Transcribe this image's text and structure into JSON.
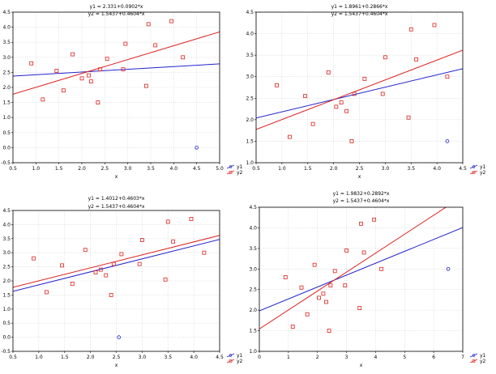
{
  "chart_data": [
    {
      "type": "scatter",
      "equations": [
        "y1 = 2.331+0.0902*x",
        "y2 = 1.5437+0.4604*x"
      ],
      "xlabel": "x",
      "ylabel": "",
      "xlim": [
        0.5,
        5.0
      ],
      "ylim": [
        -0.5,
        4.5
      ],
      "xticks": [
        "0.5",
        "1.0",
        "1.5",
        "2.0",
        "2.5",
        "3.0",
        "3.5",
        "4.0",
        "4.5",
        "5.0"
      ],
      "yticks": [
        "-0.5",
        "0.0",
        "0.5",
        "1.0",
        "1.5",
        "2.0",
        "2.5",
        "3.0",
        "3.5",
        "4.0",
        "4.5"
      ],
      "grid": true,
      "legend_position": "bottom-right",
      "series": [
        {
          "name": "y1",
          "kind": "points",
          "color": "#2222cc",
          "points": [
            [
              4.5,
              0.0
            ]
          ]
        },
        {
          "name": "y2",
          "kind": "points",
          "color": "#dd2222",
          "points": [
            [
              0.9,
              2.8
            ],
            [
              1.15,
              1.6
            ],
            [
              1.45,
              2.55
            ],
            [
              1.6,
              1.9
            ],
            [
              1.8,
              3.1
            ],
            [
              2.0,
              2.3
            ],
            [
              2.15,
              2.4
            ],
            [
              2.2,
              2.2
            ],
            [
              2.35,
              1.5
            ],
            [
              2.4,
              2.6
            ],
            [
              2.55,
              2.95
            ],
            [
              2.9,
              2.6
            ],
            [
              2.95,
              3.45
            ],
            [
              3.4,
              2.05
            ],
            [
              3.45,
              4.1
            ],
            [
              3.6,
              3.4
            ],
            [
              3.95,
              4.2
            ],
            [
              4.2,
              3.0
            ]
          ]
        },
        {
          "name": "y1",
          "kind": "line",
          "color": "#2222cc",
          "intercept": 2.331,
          "slope": 0.0902
        },
        {
          "name": "y2",
          "kind": "line",
          "color": "#dd2222",
          "intercept": 1.5437,
          "slope": 0.4604
        }
      ]
    },
    {
      "type": "scatter",
      "equations": [
        "y1 = 1.8961+0.2866*x",
        "y2 = 1.5437+0.4604*x"
      ],
      "xlabel": "x",
      "ylabel": "",
      "xlim": [
        0.5,
        4.5
      ],
      "ylim": [
        1.0,
        4.5
      ],
      "xticks": [
        "0.5",
        "1.0",
        "1.5",
        "2.0",
        "2.5",
        "3.0",
        "3.5",
        "4.0",
        "4.5"
      ],
      "yticks": [
        "1.0",
        "1.5",
        "2.0",
        "2.5",
        "3.0",
        "3.5",
        "4.0",
        "4.5"
      ],
      "grid": true,
      "legend_position": "bottom-right",
      "series": [
        {
          "name": "y1",
          "kind": "points",
          "color": "#2222cc",
          "points": [
            [
              4.2,
              1.5
            ]
          ]
        },
        {
          "name": "y2",
          "kind": "points",
          "color": "#dd2222",
          "points": [
            [
              0.9,
              2.8
            ],
            [
              1.15,
              1.6
            ],
            [
              1.45,
              2.55
            ],
            [
              1.6,
              1.9
            ],
            [
              1.9,
              3.1
            ],
            [
              2.05,
              2.3
            ],
            [
              2.15,
              2.4
            ],
            [
              2.25,
              2.2
            ],
            [
              2.35,
              1.5
            ],
            [
              2.4,
              2.6
            ],
            [
              2.6,
              2.95
            ],
            [
              2.95,
              2.6
            ],
            [
              3.0,
              3.45
            ],
            [
              3.45,
              2.05
            ],
            [
              3.5,
              4.1
            ],
            [
              3.6,
              3.4
            ],
            [
              3.95,
              4.2
            ],
            [
              4.2,
              3.0
            ]
          ]
        },
        {
          "name": "y1",
          "kind": "line",
          "color": "#2222cc",
          "intercept": 1.8961,
          "slope": 0.2866
        },
        {
          "name": "y2",
          "kind": "line",
          "color": "#dd2222",
          "intercept": 1.5437,
          "slope": 0.4604
        }
      ]
    },
    {
      "type": "scatter",
      "equations": [
        "y1 = 1.4012+0.4603*x",
        "y2 = 1.5437+0.4604*x"
      ],
      "xlabel": "x",
      "ylabel": "",
      "xlim": [
        0.5,
        4.5
      ],
      "ylim": [
        -0.5,
        4.5
      ],
      "xticks": [
        "0.5",
        "1.0",
        "1.5",
        "2.0",
        "2.5",
        "3.0",
        "3.5",
        "4.0",
        "4.5"
      ],
      "yticks": [
        "-0.5",
        "0.0",
        "0.5",
        "1.0",
        "1.5",
        "2.0",
        "2.5",
        "3.0",
        "3.5",
        "4.0",
        "4.5"
      ],
      "grid": true,
      "legend_position": "bottom-right",
      "series": [
        {
          "name": "y1",
          "kind": "points",
          "color": "#2222cc",
          "points": [
            [
              2.55,
              0.0
            ]
          ]
        },
        {
          "name": "y2",
          "kind": "points",
          "color": "#dd2222",
          "points": [
            [
              0.9,
              2.8
            ],
            [
              1.15,
              1.6
            ],
            [
              1.45,
              2.55
            ],
            [
              1.65,
              1.9
            ],
            [
              1.9,
              3.1
            ],
            [
              2.1,
              2.3
            ],
            [
              2.2,
              2.4
            ],
            [
              2.3,
              2.2
            ],
            [
              2.4,
              1.5
            ],
            [
              2.45,
              2.6
            ],
            [
              2.6,
              2.95
            ],
            [
              2.95,
              2.6
            ],
            [
              3.0,
              3.45
            ],
            [
              3.45,
              2.05
            ],
            [
              3.5,
              4.1
            ],
            [
              3.6,
              3.4
            ],
            [
              3.95,
              4.2
            ],
            [
              4.2,
              3.0
            ]
          ]
        },
        {
          "name": "y1",
          "kind": "line",
          "color": "#2222cc",
          "intercept": 1.4012,
          "slope": 0.4603
        },
        {
          "name": "y2",
          "kind": "line",
          "color": "#dd2222",
          "intercept": 1.5437,
          "slope": 0.4604
        }
      ]
    },
    {
      "type": "scatter",
      "equations": [
        "y1 = 1.9832+0.2892*x",
        "y2 = 1.5437+0.4604*x"
      ],
      "xlabel": "x",
      "ylabel": "",
      "xlim": [
        0,
        7
      ],
      "ylim": [
        1.0,
        4.5
      ],
      "xticks": [
        "0",
        "1",
        "2",
        "3",
        "4",
        "5",
        "6",
        "7"
      ],
      "yticks": [
        "1.0",
        "1.5",
        "2.0",
        "2.5",
        "3.0",
        "3.5",
        "4.0",
        "4.5"
      ],
      "grid": true,
      "legend_position": "bottom-right",
      "series": [
        {
          "name": "y1",
          "kind": "points",
          "color": "#2222cc",
          "points": [
            [
              6.5,
              3.0
            ]
          ]
        },
        {
          "name": "y2",
          "kind": "points",
          "color": "#dd2222",
          "points": [
            [
              0.9,
              2.8
            ],
            [
              1.15,
              1.6
            ],
            [
              1.45,
              2.55
            ],
            [
              1.65,
              1.9
            ],
            [
              1.9,
              3.1
            ],
            [
              2.05,
              2.3
            ],
            [
              2.2,
              2.4
            ],
            [
              2.3,
              2.2
            ],
            [
              2.4,
              1.5
            ],
            [
              2.45,
              2.6
            ],
            [
              2.6,
              2.95
            ],
            [
              2.95,
              2.6
            ],
            [
              3.0,
              3.45
            ],
            [
              3.45,
              2.05
            ],
            [
              3.5,
              4.1
            ],
            [
              3.6,
              3.4
            ],
            [
              3.95,
              4.2
            ],
            [
              4.2,
              3.0
            ]
          ]
        },
        {
          "name": "y1",
          "kind": "line",
          "color": "#2222cc",
          "intercept": 1.9832,
          "slope": 0.2892
        },
        {
          "name": "y2",
          "kind": "line",
          "color": "#dd2222",
          "intercept": 1.5437,
          "slope": 0.4604
        }
      ]
    }
  ]
}
